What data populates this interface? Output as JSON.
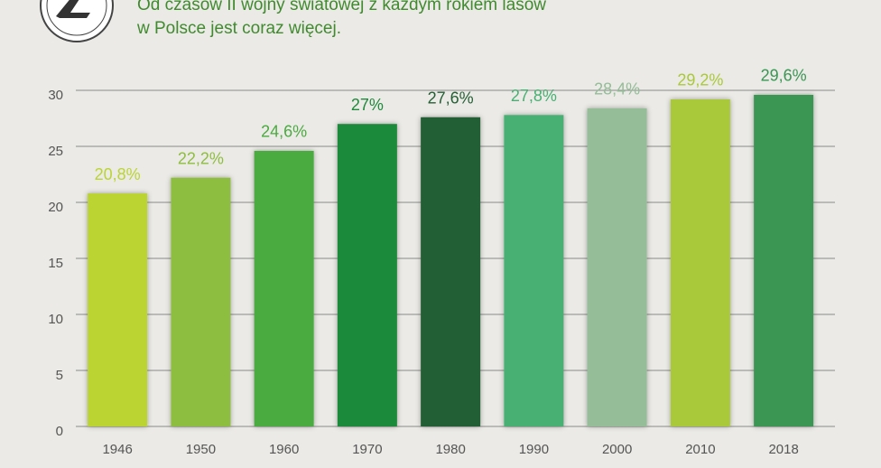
{
  "chart_data": {
    "type": "bar",
    "title": [
      "Od czasów II wojny światowej z każdym rokiem lasów",
      "w Polsce jest coraz więcej."
    ],
    "categories": [
      "1946",
      "1950",
      "1960",
      "1970",
      "1980",
      "1990",
      "2000",
      "2010",
      "2018"
    ],
    "values": [
      20.8,
      22.2,
      24.6,
      27,
      27.6,
      27.8,
      28.4,
      29.2,
      29.6
    ],
    "value_labels": [
      "20,8%",
      "22,2%",
      "24,6%",
      "27%",
      "27,6%",
      "27,8%",
      "28,4%",
      "29,2%",
      "29,6%"
    ],
    "colors": [
      "#bcd433",
      "#8dbe3f",
      "#4aab3f",
      "#1f8a3b",
      "#245f34",
      "#47b072",
      "#94bd98",
      "#a9c93a",
      "#3a9653"
    ],
    "ylim": [
      0,
      30
    ],
    "yticks": [
      0,
      5,
      10,
      15,
      20,
      25,
      30
    ],
    "grid": true
  }
}
